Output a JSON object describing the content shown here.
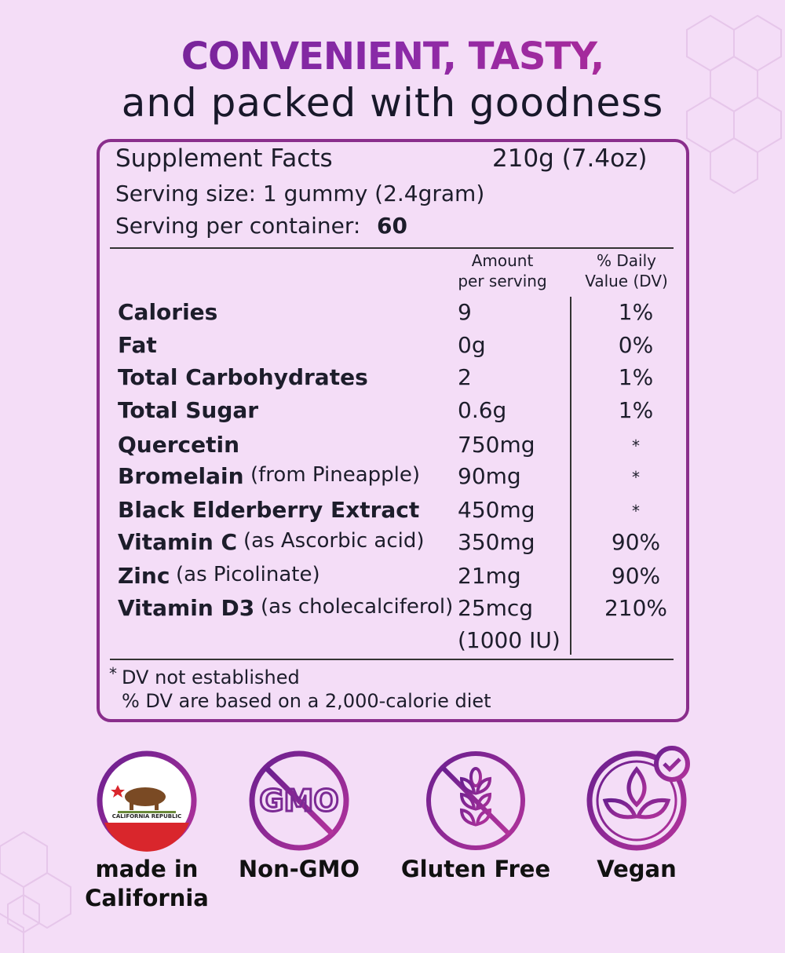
{
  "header": {
    "line1": "CONVENIENT, TASTY,",
    "line2": "and packed with goodness"
  },
  "facts": {
    "title": "Supplement Facts",
    "net_weight": "210g (7.4oz)",
    "serving_size": "Serving size: 1 gummy (2.4gram)",
    "servings_label": "Serving per container:",
    "servings_value": "60",
    "col_amount": [
      "Amount",
      "per serving"
    ],
    "col_dv": [
      "% Daily",
      "Value (DV)"
    ],
    "rows": [
      {
        "name": "Calories",
        "amount": "9",
        "dv": "1%"
      },
      {
        "name": "Fat",
        "amount": "0g",
        "dv": "0%"
      },
      {
        "name": "Total Carbohydrates",
        "amount": "2",
        "dv": "1%"
      },
      {
        "name": "Total Sugar",
        "amount": "0.6g",
        "dv": "1%"
      },
      {
        "name": "Quercetin",
        "amount": "750mg",
        "dv": "*"
      },
      {
        "name": "Bromelain",
        "note": "(from Pineapple)",
        "amount": "90mg",
        "dv": "*"
      },
      {
        "name": "Black Elderberry Extract",
        "amount": "450mg",
        "dv": "*"
      },
      {
        "name": "Vitamin C",
        "note": "(as Ascorbic acid)",
        "amount": "350mg",
        "dv": "90%"
      },
      {
        "name": "Zinc",
        "note": "(as Picolinate)",
        "amount": "21mg",
        "dv": "90%"
      },
      {
        "name": "Vitamin D3",
        "note": "(as cholecalciferol)",
        "amount": "25mcg",
        "amount2": "(1000 IU)",
        "dv": "210%"
      }
    ],
    "footnote_mark": "*",
    "footnote1": "DV not established",
    "footnote2": "% DV are based on a 2,000-calorie diet"
  },
  "badges": [
    {
      "label": [
        "made in",
        "California"
      ],
      "flag_text": "CALIFORNIA REPUBLIC"
    },
    {
      "label": [
        "Non-GMO"
      ],
      "icon_text": "GMO"
    },
    {
      "label": [
        "Gluten Free"
      ]
    },
    {
      "label": [
        "Vegan"
      ]
    }
  ]
}
